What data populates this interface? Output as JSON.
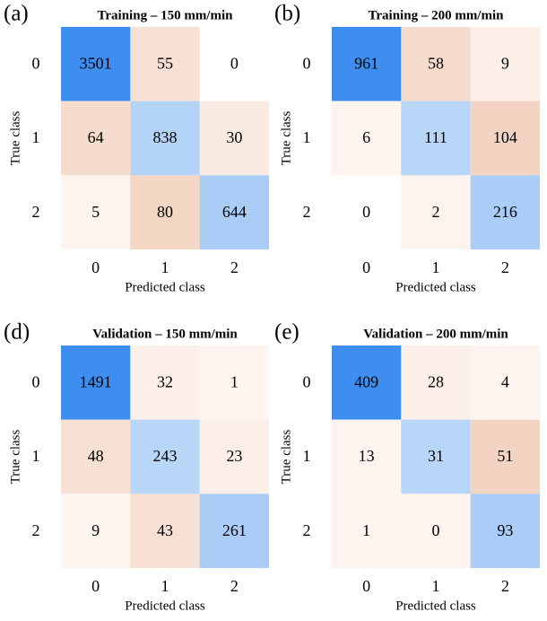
{
  "chart_data": [
    {
      "type": "heatmap",
      "panel_label": "(a)",
      "title": "Training – 150 mm/min",
      "x_categories": [
        "0",
        "1",
        "2"
      ],
      "y_categories": [
        "0",
        "1",
        "2"
      ],
      "xlabel": "Predicted class",
      "ylabel": "True class",
      "values": [
        [
          3501,
          55,
          0
        ],
        [
          64,
          838,
          30
        ],
        [
          5,
          80,
          644
        ]
      ],
      "colors": [
        [
          "#3d8ef0",
          "#f7e0d4",
          "#ffffff"
        ],
        [
          "#f5dccd",
          "#b3d3f7",
          "#f9ebe2"
        ],
        [
          "#fdf4ef",
          "#f3d6c4",
          "#a9cdf6"
        ]
      ]
    },
    {
      "type": "heatmap",
      "panel_label": "(b)",
      "title": "Training – 200 mm/min",
      "x_categories": [
        "0",
        "1",
        "2"
      ],
      "y_categories": [
        "0",
        "1",
        "2"
      ],
      "xlabel": "Predicted class",
      "ylabel": "True class",
      "values": [
        [
          961,
          58,
          9
        ],
        [
          6,
          111,
          104
        ],
        [
          0,
          2,
          216
        ]
      ],
      "colors": [
        [
          "#3d8ef0",
          "#f5dccd",
          "#fbefe8"
        ],
        [
          "#fdf4ef",
          "#b8d6f7",
          "#f3d4c2"
        ],
        [
          "#ffffff",
          "#fdf4ef",
          "#a9cdf6"
        ]
      ]
    },
    {
      "type": "heatmap",
      "panel_label": "(d)",
      "title": "Validation – 150 mm/min",
      "x_categories": [
        "0",
        "1",
        "2"
      ],
      "y_categories": [
        "0",
        "1",
        "2"
      ],
      "xlabel": "Predicted class",
      "ylabel": "True class",
      "values": [
        [
          1491,
          32,
          1
        ],
        [
          48,
          243,
          23
        ],
        [
          9,
          43,
          261
        ]
      ],
      "colors": [
        [
          "#3d8ef0",
          "#fbefe8",
          "#fdf4ef"
        ],
        [
          "#f7e0d4",
          "#b8d6f7",
          "#fbefe8"
        ],
        [
          "#fdf4ef",
          "#f7e0d4",
          "#a9cdf6"
        ]
      ]
    },
    {
      "type": "heatmap",
      "panel_label": "(e)",
      "title": "Validation – 200 mm/min",
      "x_categories": [
        "0",
        "1",
        "2"
      ],
      "y_categories": [
        "0",
        "1",
        "2"
      ],
      "xlabel": "Predicted class",
      "ylabel": "True class",
      "values": [
        [
          409,
          28,
          4
        ],
        [
          13,
          31,
          51
        ],
        [
          1,
          0,
          93
        ]
      ],
      "colors": [
        [
          "#3d8ef0",
          "#fbefe8",
          "#fdf4ef"
        ],
        [
          "#fdf4ef",
          "#b8d6f7",
          "#f3d4c2"
        ],
        [
          "#fdf4ef",
          "#fdf4ef",
          "#a9cdf6"
        ]
      ]
    }
  ]
}
